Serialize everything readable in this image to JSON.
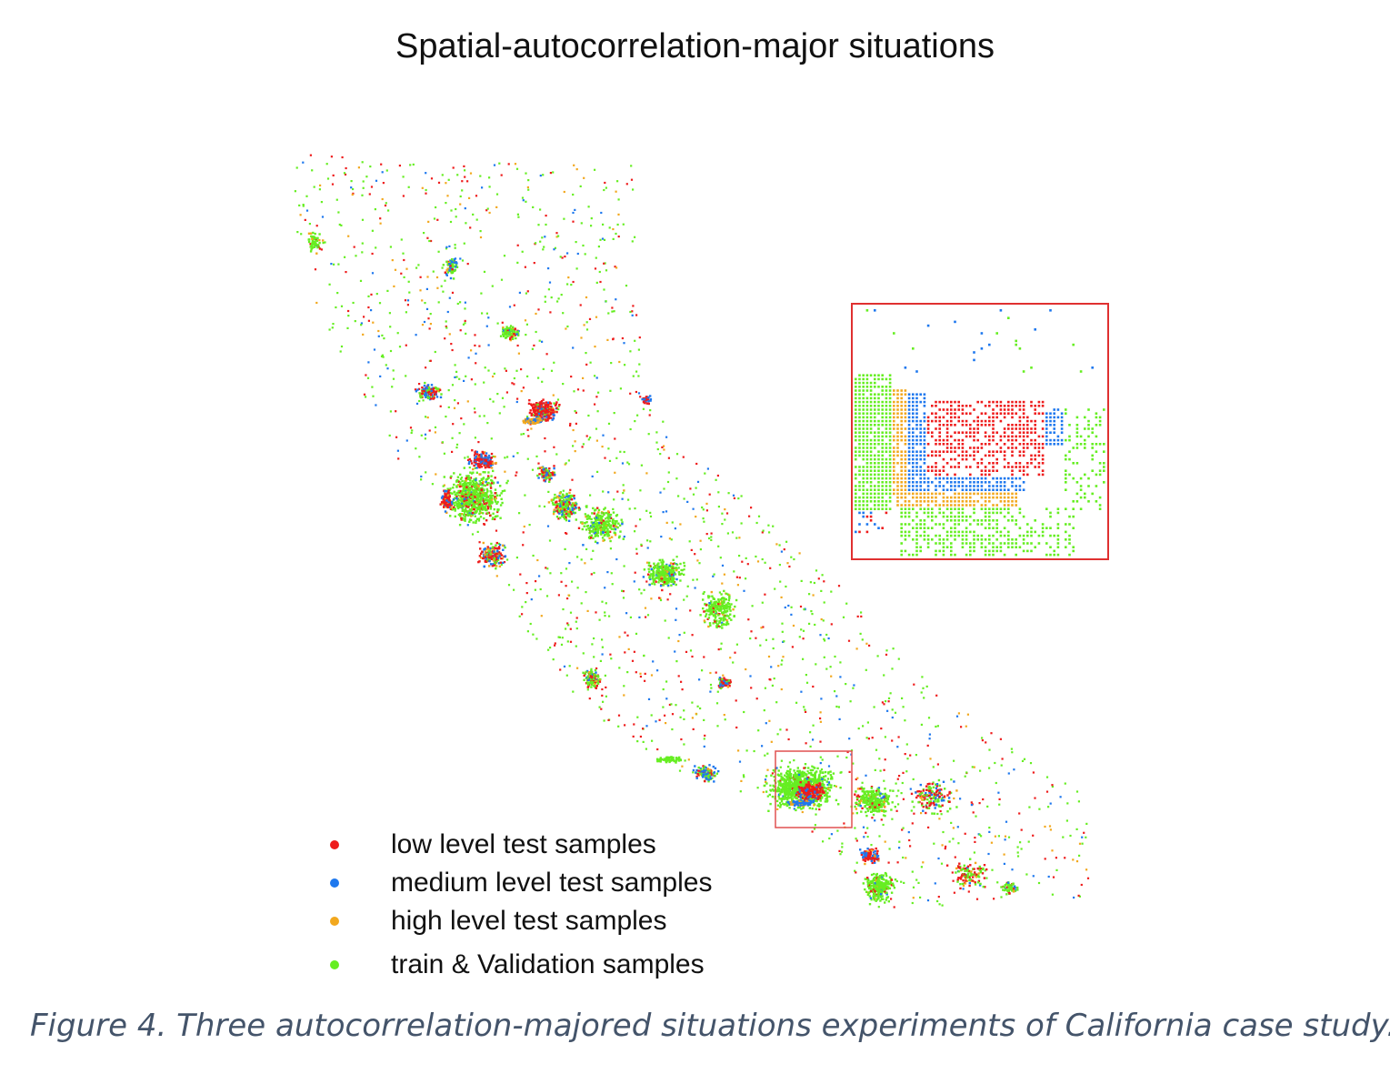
{
  "figure": {
    "title": "Spatial-autocorrelation-major situations",
    "caption": "Figure 4. Three autocorrelation-majored situations experiments of California case study."
  },
  "chart_data": {
    "type": "scatter",
    "title": "Spatial-autocorrelation-major situations",
    "xlabel": "",
    "ylabel": "",
    "axes_visible": false,
    "grid": false,
    "legend_placement": "bottom-left",
    "series": [
      {
        "name": "low level test samples",
        "color": "#ee1c1c"
      },
      {
        "name": "medium level test samples",
        "color": "#1e78ee"
      },
      {
        "name": "high level test samples",
        "color": "#f2a81e"
      },
      {
        "name": "train & Validation samples",
        "color": "#66ee22"
      }
    ],
    "annotations": [
      {
        "type": "zoom-inset",
        "source": "small box around the Los Angeles area",
        "frame_color": "#e03030"
      }
    ]
  }
}
